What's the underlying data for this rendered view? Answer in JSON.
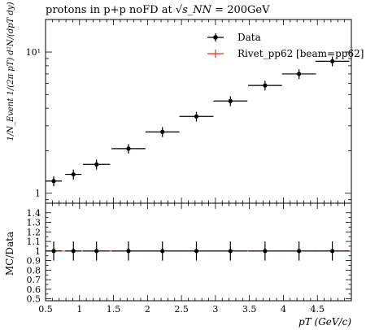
{
  "chart_data": [
    {
      "type": "scatter",
      "title_prefix": "protons in p+p noFD at ",
      "title_math": "√s_NN",
      "title_suffix": " = 200GeV",
      "ylabel": "1/N_Event 1/(2π pT) d²N/(dpT dy)",
      "yscale": "log",
      "ylim": [
        0.85,
        17
      ],
      "yticks": [
        {
          "value": 1,
          "label": "1"
        },
        {
          "value": 10,
          "label": "10¹"
        }
      ],
      "legend": {
        "placement": "top-right",
        "entries": [
          {
            "label": "Data",
            "color": "#000000"
          },
          {
            "label": "Rivet_pp62 [beam=pp62]",
            "color": "#ee3311"
          }
        ]
      },
      "series": [
        {
          "name": "Data",
          "x": [
            0.62,
            0.91,
            1.25,
            1.72,
            2.22,
            2.72,
            3.22,
            3.73,
            4.23,
            4.72
          ],
          "y": [
            1.22,
            1.36,
            1.6,
            2.07,
            2.72,
            3.5,
            4.5,
            5.8,
            7.0,
            8.6
          ],
          "xerr": [
            0.12,
            0.12,
            0.2,
            0.25,
            0.25,
            0.25,
            0.25,
            0.25,
            0.25,
            0.25
          ],
          "yerr": [
            0.1,
            0.11,
            0.13,
            0.16,
            0.22,
            0.28,
            0.36,
            0.46,
            0.56,
            0.68
          ]
        }
      ]
    },
    {
      "type": "scatter",
      "xlabel": "pT (GeV/c)",
      "ylabel": "MC/Data",
      "xlim": [
        0.5,
        5.0
      ],
      "ylim": [
        0.48,
        1.5
      ],
      "xticks": [
        0.5,
        1,
        1.5,
        2,
        2.5,
        3,
        3.5,
        4,
        4.5
      ],
      "xtick_labels": [
        "0.5",
        "1",
        "1.5",
        "2",
        "2.5",
        "3",
        "3.5",
        "4",
        "4.5"
      ],
      "yticks": [
        0.5,
        0.6,
        0.7,
        0.8,
        0.9,
        1,
        1.1,
        1.2,
        1.3,
        1.4
      ],
      "ytick_labels": [
        "0.5",
        "0.6",
        "0.7",
        "0.8",
        "0.9",
        "1",
        "1.1",
        "1.2",
        "1.3",
        "1.4"
      ],
      "series": [
        {
          "name": "Data",
          "x": [
            0.62,
            0.91,
            1.25,
            1.72,
            2.22,
            2.72,
            3.22,
            3.73,
            4.23,
            4.72
          ],
          "y": [
            1,
            1,
            1,
            1,
            1,
            1,
            1,
            1,
            1,
            1
          ],
          "xerr": [
            0.12,
            0.12,
            0.2,
            0.25,
            0.25,
            0.25,
            0.25,
            0.25,
            0.25,
            0.25
          ],
          "yerr": [
            0.1,
            0.1,
            0.1,
            0.1,
            0.1,
            0.1,
            0.1,
            0.1,
            0.1,
            0.1
          ]
        }
      ]
    }
  ]
}
